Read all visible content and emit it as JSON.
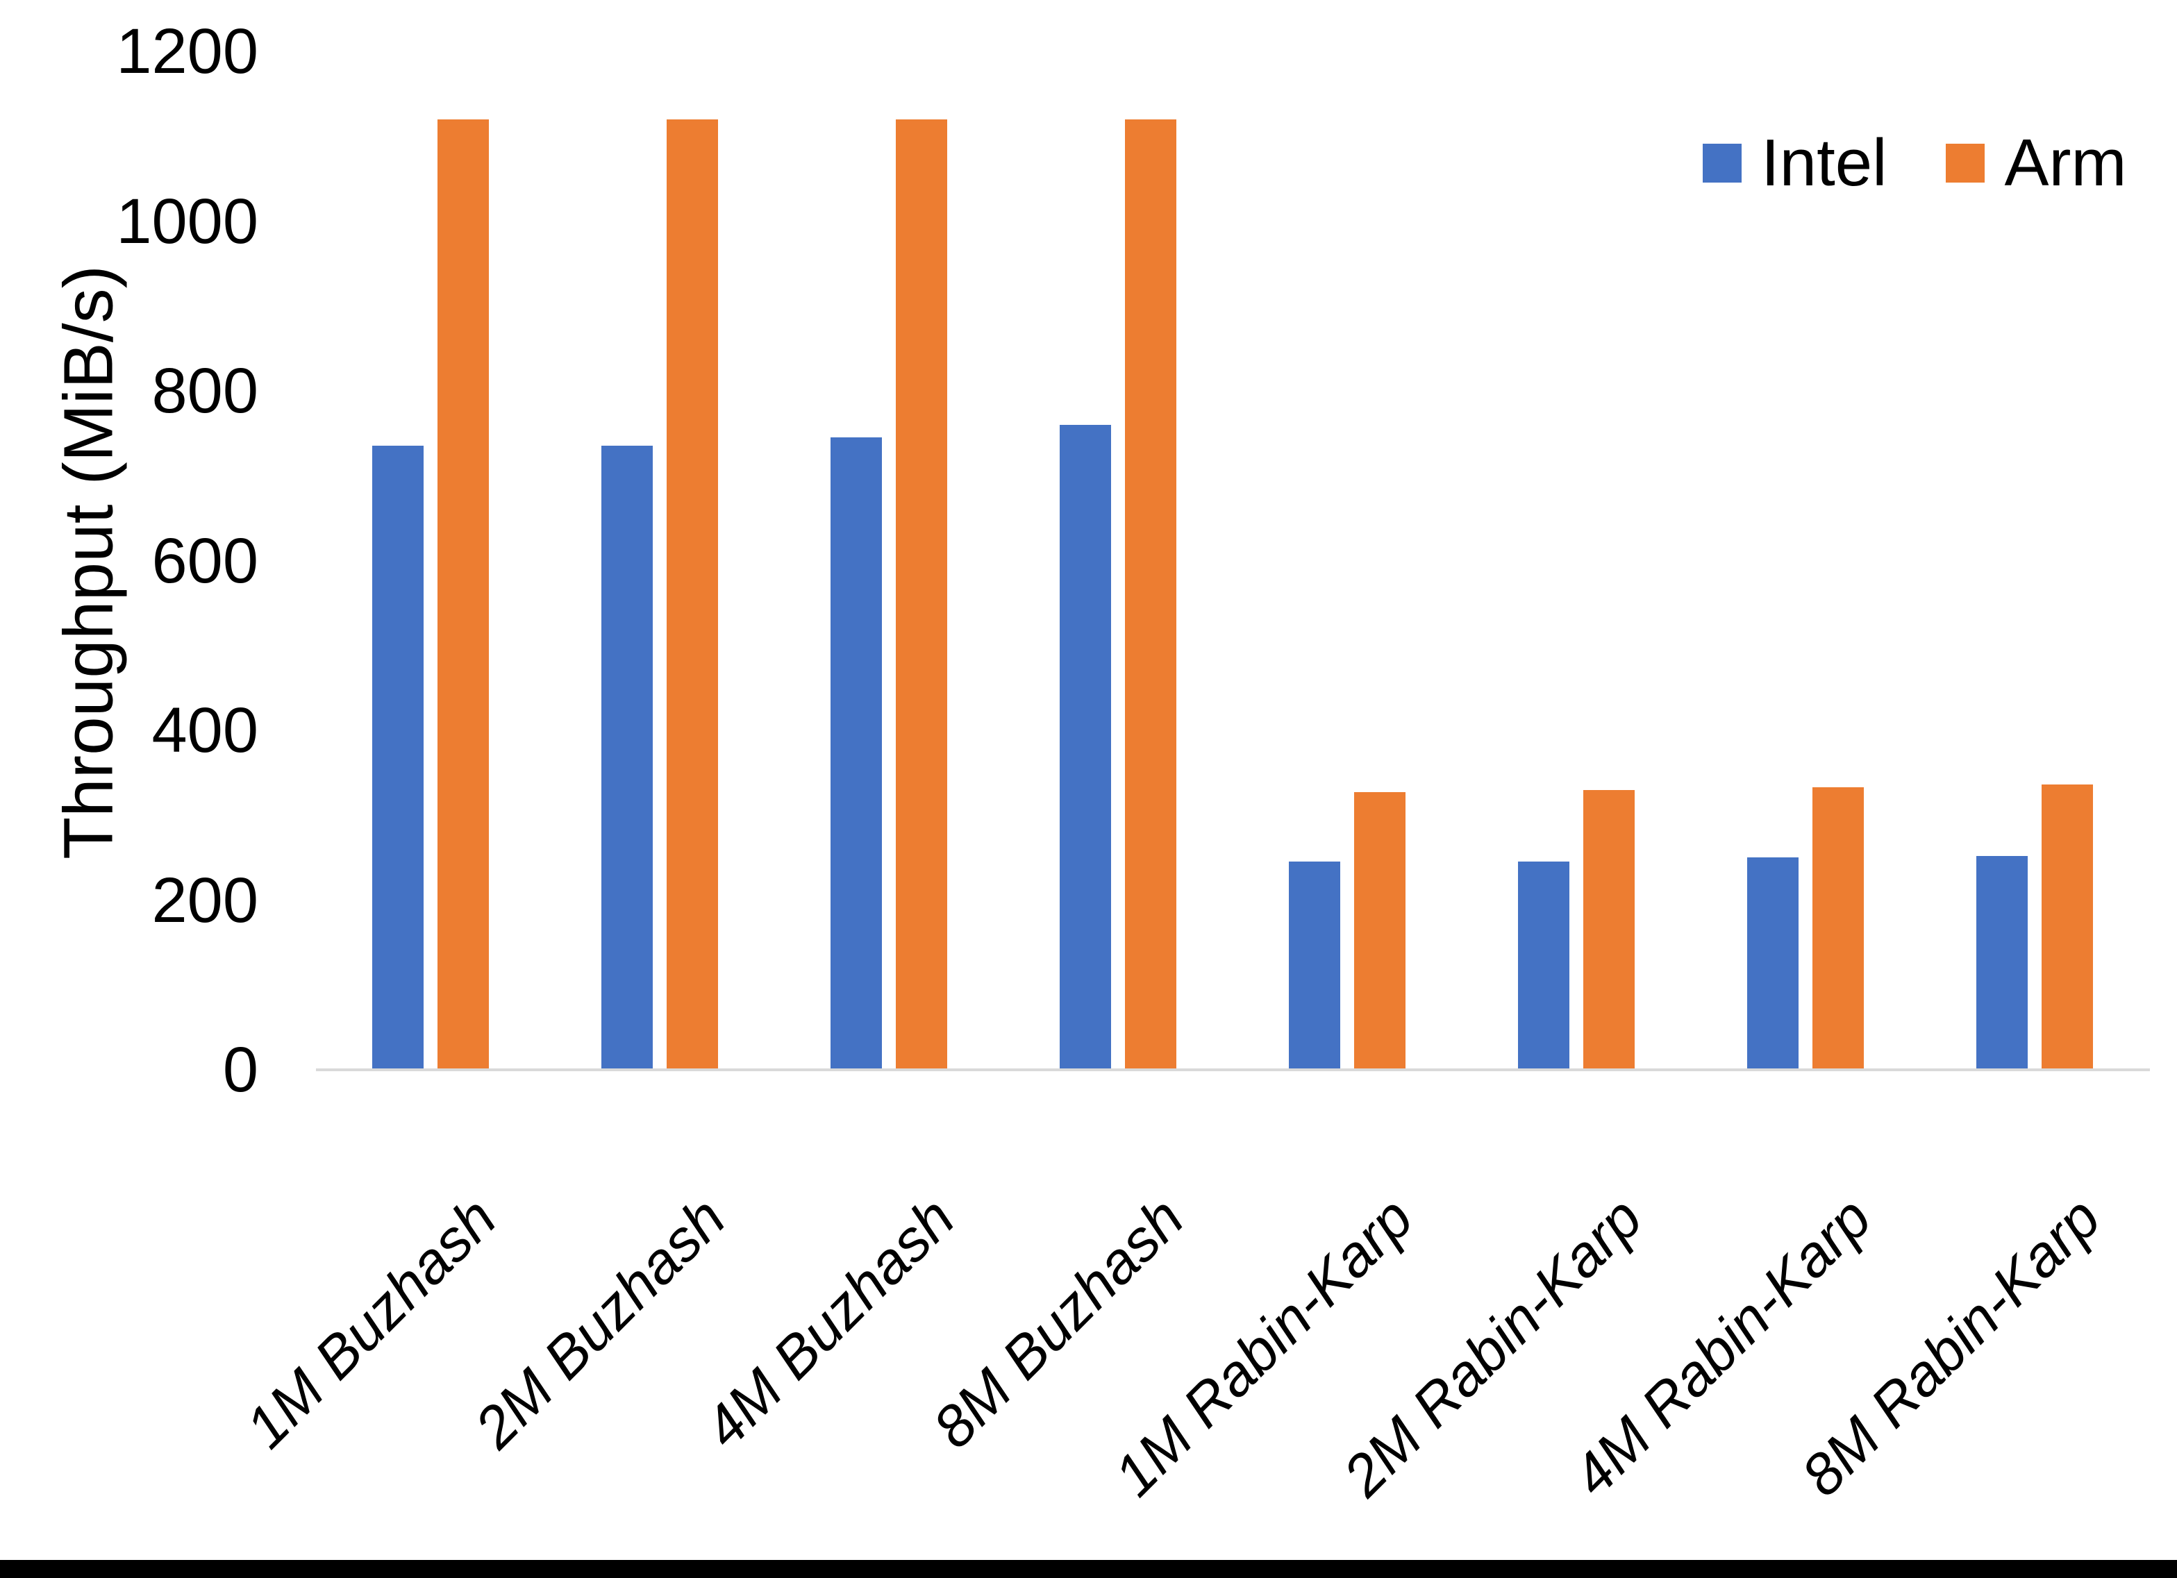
{
  "chart_data": {
    "type": "bar",
    "title": "",
    "xlabel": "",
    "ylabel": "Throughput (MiB/s)",
    "categories": [
      "1M Buzhash",
      "2M Buzhash",
      "4M Buzhash",
      "8M Buzhash",
      "1M Rabin-Karp",
      "2M Rabin-Karp",
      "4M Rabin-Karp",
      "8M Rabin-Karp"
    ],
    "series": [
      {
        "name": "Intel",
        "color": "#4472C4",
        "values": [
          735,
          735,
          745,
          760,
          245,
          245,
          250,
          252
        ]
      },
      {
        "name": "Arm",
        "color": "#ED7D31",
        "values": [
          1120,
          1120,
          1120,
          1120,
          327,
          330,
          333,
          336
        ]
      }
    ],
    "ylim": [
      0,
      1200
    ],
    "y_ticks": [
      0,
      200,
      400,
      600,
      800,
      1000,
      1200
    ],
    "grid": false,
    "legend_position": "top-right",
    "axis_line_color": "#D9D9D9"
  }
}
